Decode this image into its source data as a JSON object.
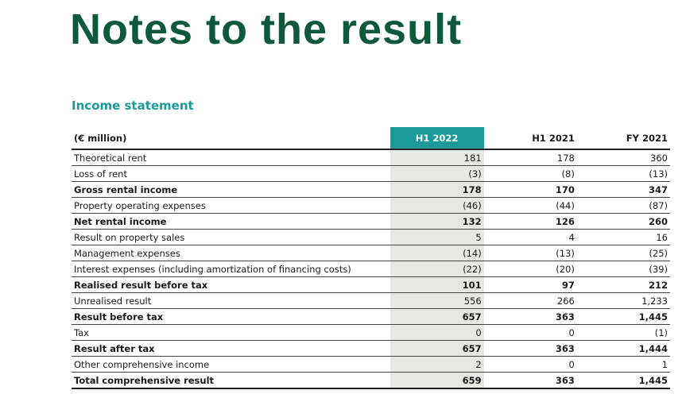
{
  "header": {
    "title": "Notes to the result",
    "subtitle": "Income statement"
  },
  "table": {
    "columns": [
      "(€ million)",
      "H1 2022",
      "H1 2021",
      "FY 2021"
    ],
    "rows": [
      [
        "Theoretical rent",
        "181",
        "178",
        "360"
      ],
      [
        "Loss of rent",
        "(3)",
        "(8)",
        "(13)"
      ],
      [
        "Gross rental income",
        "178",
        "170",
        "347"
      ],
      [
        "Property operating expenses",
        "(46)",
        "(44)",
        "(87)"
      ],
      [
        "Net rental income",
        "132",
        "126",
        "260"
      ],
      [
        "Result on property sales",
        "5",
        "4",
        "16"
      ],
      [
        "Management expenses",
        "(14)",
        "(13)",
        "(25)"
      ],
      [
        "Interest expenses (including amortization of financing costs)",
        "(22)",
        "(20)",
        "(39)"
      ],
      [
        "Realised result before tax",
        "101",
        "97",
        "212"
      ],
      [
        "Unrealised result",
        "556",
        "266",
        "1,233"
      ],
      [
        "Result before tax",
        "657",
        "363",
        "1,445"
      ],
      [
        "Tax",
        "0",
        "0",
        "(1)"
      ],
      [
        "Result after tax",
        "657",
        "363",
        "1,444"
      ],
      [
        "Other comprehensive income",
        "2",
        "0",
        "1"
      ],
      [
        "Total comprehensive result",
        "659",
        "363",
        "1,445"
      ]
    ]
  }
}
